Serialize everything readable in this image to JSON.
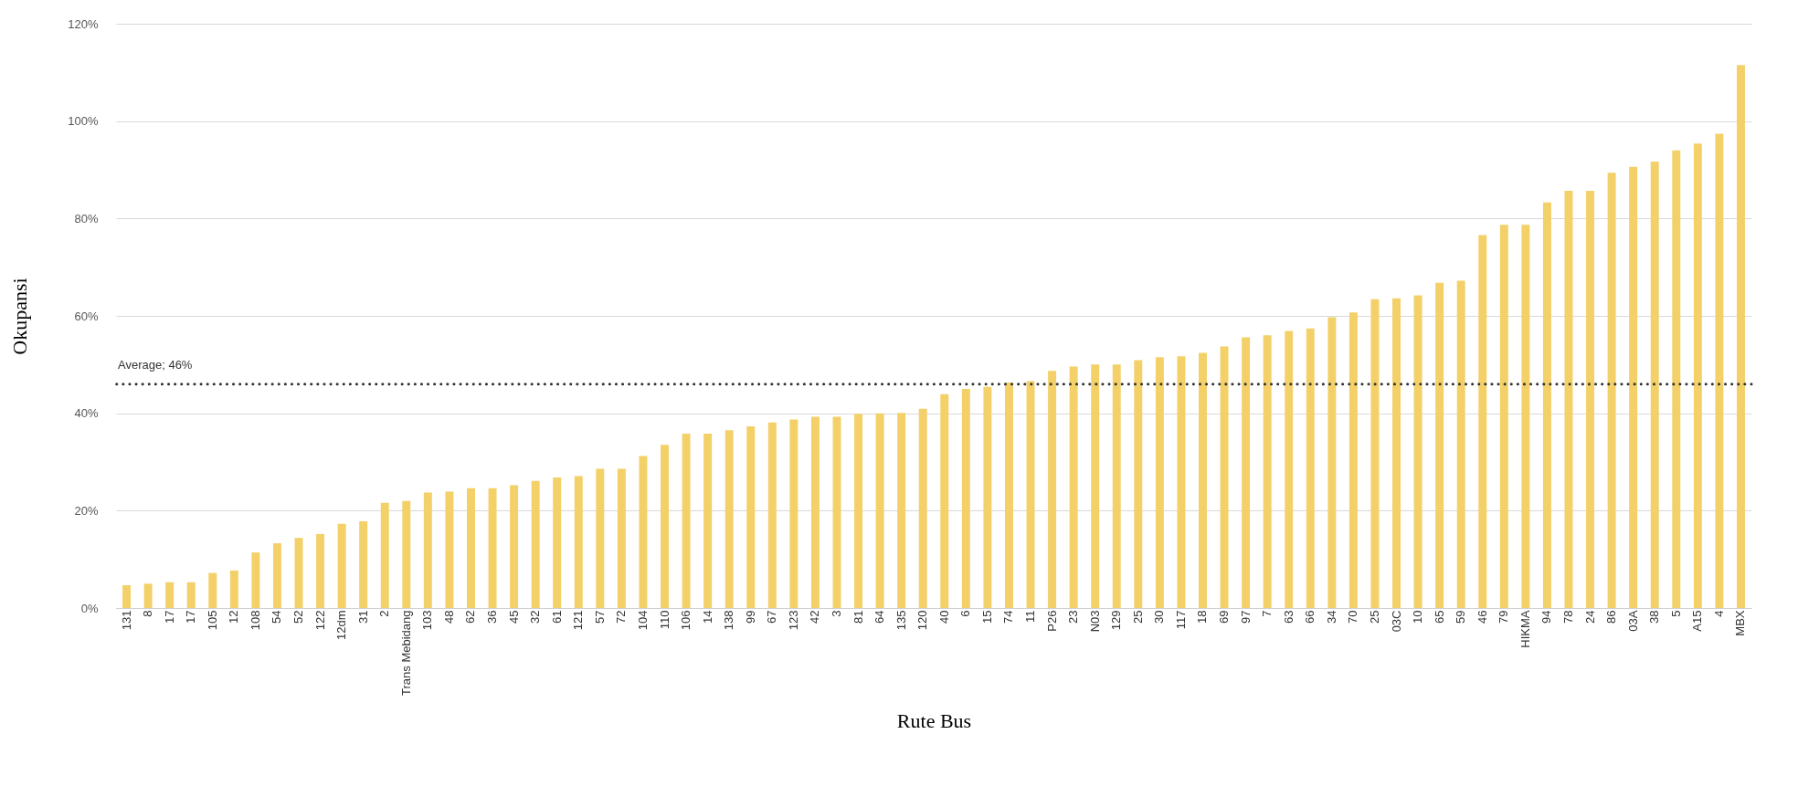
{
  "chart_data": {
    "type": "bar",
    "xlabel": "Rute Bus",
    "ylabel": "Okupansi",
    "categories": [
      "131",
      "8",
      "17",
      "17",
      "105",
      "12",
      "108",
      "54",
      "52",
      "122",
      "12dm",
      "31",
      "2",
      "Trans Mebidang",
      "103",
      "48",
      "62",
      "36",
      "45",
      "32",
      "61",
      "121",
      "57",
      "72",
      "104",
      "110",
      "106",
      "14",
      "138",
      "99",
      "67",
      "123",
      "42",
      "3",
      "81",
      "64",
      "135",
      "120",
      "40",
      "6",
      "15",
      "74",
      "11",
      "P26",
      "23",
      "N03",
      "129",
      "25",
      "30",
      "117",
      "18",
      "69",
      "97",
      "7",
      "63",
      "66",
      "34",
      "70",
      "25",
      "03C",
      "10",
      "65",
      "59",
      "46",
      "79",
      "HIKMA",
      "94",
      "78",
      "24",
      "86",
      "03A",
      "38",
      "5",
      "A15",
      "4",
      "MBX"
    ],
    "values": [
      4.7,
      5.0,
      5.3,
      5.3,
      7.2,
      7.7,
      11.4,
      13.3,
      14.4,
      15.2,
      17.3,
      17.8,
      21.6,
      22.0,
      23.7,
      23.9,
      24.6,
      24.6,
      25.2,
      26.1,
      26.8,
      27.1,
      28.6,
      28.6,
      31.2,
      33.5,
      35.8,
      35.8,
      36.5,
      37.3,
      38.1,
      38.7,
      39.3,
      39.3,
      39.9,
      40.0,
      40.1,
      40.9,
      43.9,
      45.0,
      45.4,
      46.3,
      46.6,
      48.7,
      49.6,
      50.0,
      50.0,
      50.9,
      51.5,
      51.7,
      52.4,
      53.7,
      55.6,
      56.0,
      56.9,
      57.4,
      59.7,
      60.7,
      63.4,
      63.6,
      64.2,
      66.8,
      67.2,
      76.6,
      78.7,
      78.7,
      83.3,
      85.7,
      85.7,
      89.4,
      90.6,
      91.7,
      94.0,
      95.4,
      97.4,
      111.5
    ],
    "color": "#f3d068",
    "ylim": [
      0,
      120
    ],
    "yticks": [
      {
        "value": 0,
        "label": "0%"
      },
      {
        "value": 20,
        "label": "20%"
      },
      {
        "value": 40,
        "label": "40%"
      },
      {
        "value": 60,
        "label": "60%"
      },
      {
        "value": 80,
        "label": "80%"
      },
      {
        "value": 100,
        "label": "100%"
      },
      {
        "value": 120,
        "label": "120%"
      }
    ],
    "grid": "y",
    "ref_lines": [
      {
        "axis": "y",
        "value": 46,
        "label": "Average; 46%",
        "color": "#333333",
        "line_style": "dotted"
      }
    ]
  }
}
